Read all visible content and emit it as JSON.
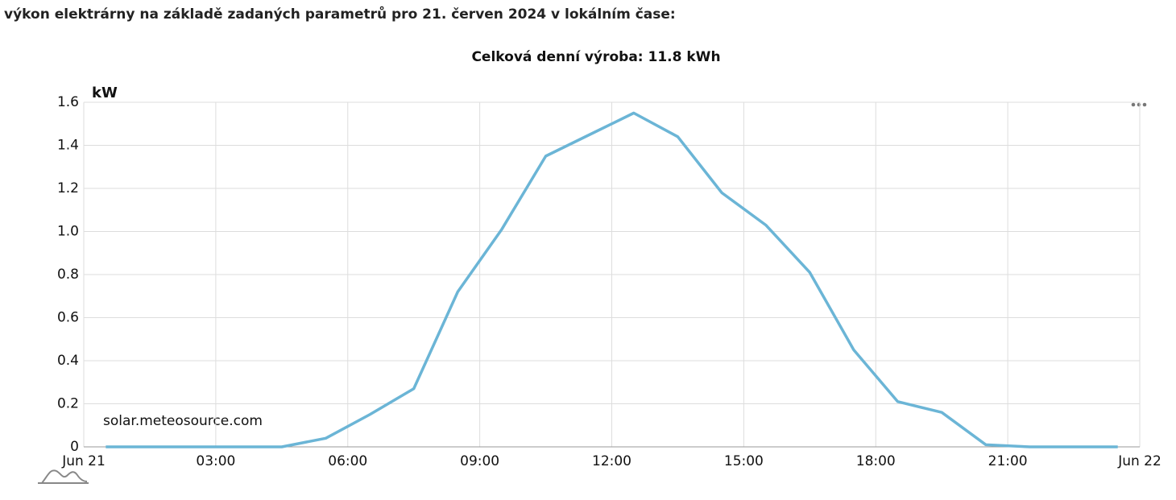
{
  "heading": "výkon elektrárny na základě zadaných parametrů pro 21. červen 2024 v lokálním čase:",
  "chart_data": {
    "type": "line",
    "title": "Celková denní výroba: 11.8 kWh",
    "y_label": "kW",
    "watermark": "solar.meteosource.com",
    "x": [
      0.5,
      1.5,
      2.5,
      3.5,
      4.5,
      5.5,
      6.5,
      7.5,
      8.5,
      9.5,
      10.5,
      11.5,
      12.5,
      13.5,
      14.5,
      15.5,
      16.5,
      17.5,
      18.5,
      19.5,
      20.5,
      21.5,
      22.5,
      23.5
    ],
    "values": [
      0,
      0,
      0,
      0,
      0,
      0.04,
      0.15,
      0.27,
      0.72,
      1.01,
      1.35,
      1.45,
      1.55,
      1.44,
      1.18,
      1.03,
      0.81,
      0.45,
      0.21,
      0.16,
      0.01,
      0,
      0,
      0
    ],
    "color": "#6bb5d6",
    "xlim": [
      0,
      24
    ],
    "xticks": [
      {
        "value": 0,
        "label": "Jun 21"
      },
      {
        "value": 3,
        "label": "03:00"
      },
      {
        "value": 6,
        "label": "06:00"
      },
      {
        "value": 9,
        "label": "09:00"
      },
      {
        "value": 12,
        "label": "12:00"
      },
      {
        "value": 15,
        "label": "15:00"
      },
      {
        "value": 18,
        "label": "18:00"
      },
      {
        "value": 21,
        "label": "21:00"
      },
      {
        "value": 24,
        "label": "Jun 22"
      }
    ],
    "ylim": [
      0,
      1.6
    ],
    "yticks": [
      0,
      0.2,
      0.4,
      0.6,
      0.8,
      {
        "value": 1,
        "label": "1.0"
      },
      1.2,
      1.4,
      1.6
    ],
    "grid": true
  }
}
